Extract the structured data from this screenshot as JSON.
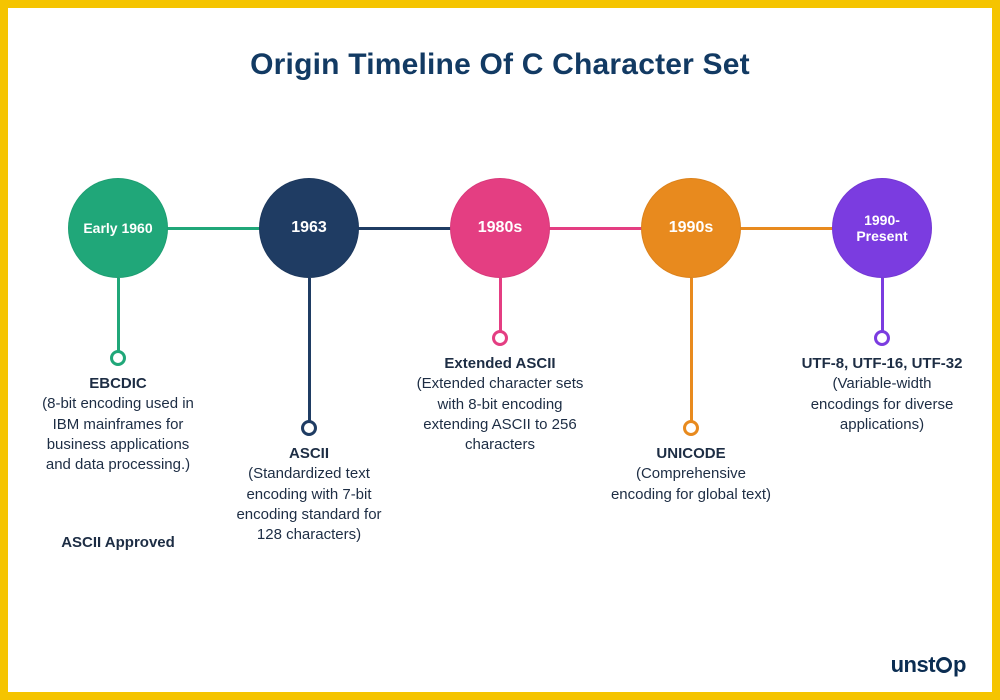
{
  "title": "Origin Timeline Of C Character Set",
  "title_color": "#123a63",
  "title_fontsize": 30,
  "frame_border_color": "#f5c400",
  "background_color": "#ffffff",
  "axis_thickness": 3,
  "node_diameter": 100,
  "timeline": {
    "items": [
      {
        "year": "Early 1960",
        "year_fontsize": 14,
        "color": "#20a779",
        "stem_length": 80,
        "desc_title": "EBCDIC",
        "desc_body": "(8-bit encoding used in IBM mainframes for business applications and data processing.)",
        "extra": "ASCII Approved"
      },
      {
        "year": "1963",
        "year_fontsize": 16,
        "color": "#1f3c63",
        "stem_length": 150,
        "desc_title": "ASCII",
        "desc_body": "(Standardized text encoding with 7-bit encoding standard for 128 characters)",
        "extra": ""
      },
      {
        "year": "1980s",
        "year_fontsize": 16,
        "color": "#e43e82",
        "stem_length": 60,
        "desc_title": "Extended ASCII",
        "desc_body": "(Extended character sets with 8-bit encoding extending ASCII to 256 characters",
        "extra": ""
      },
      {
        "year": "1990s",
        "year_fontsize": 16,
        "color": "#e88a1e",
        "stem_length": 150,
        "desc_title": "UNICODE",
        "desc_body": "(Comprehensive encoding for global text)",
        "extra": ""
      },
      {
        "year": "1990-Present",
        "year_fontsize": 14,
        "color": "#7b3ce0",
        "stem_length": 60,
        "desc_title": "UTF-8, UTF-16, UTF-32",
        "desc_body": "(Variable-width encodings for diverse applications)",
        "extra": ""
      }
    ]
  },
  "logo_text_left": "unst",
  "logo_text_right": "p",
  "text_color": "#1d2d44"
}
